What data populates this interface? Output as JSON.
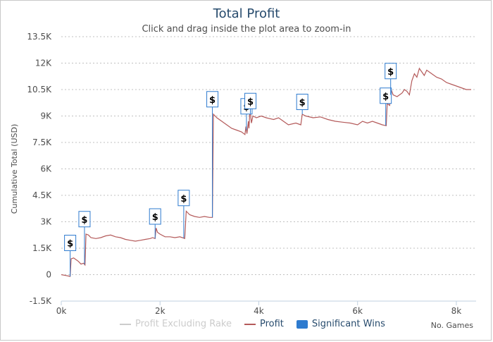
{
  "chart_data": {
    "type": "line",
    "title": "Total Profit",
    "subtitle": "Click and drag inside the plot area to zoom-in",
    "ylabel": "Cumulative Total (USD)",
    "xlabel": "No. Games",
    "ylim": [
      -1500,
      13500
    ],
    "xlim": [
      0,
      8400
    ],
    "y_ticks": [
      -1500,
      0,
      1500,
      3000,
      4500,
      6000,
      7500,
      9000,
      10500,
      12000,
      13500
    ],
    "y_tick_labels": [
      "-1.5K",
      "0",
      "1.5K",
      "3K",
      "4.5K",
      "6K",
      "7.5K",
      "9K",
      "10.5K",
      "12K",
      "13.5K"
    ],
    "x_ticks": [
      0,
      2000,
      4000,
      6000,
      8000
    ],
    "x_tick_labels": [
      "0k",
      "2k",
      "4k",
      "6k",
      "8k"
    ],
    "series": [
      {
        "name": "Profit Excluding Rake",
        "visible": false,
        "color": "#cccccc",
        "points": []
      },
      {
        "name": "Profit",
        "visible": true,
        "color": "#b45a5a",
        "points": [
          [
            0,
            0
          ],
          [
            100,
            -50
          ],
          [
            150,
            -80
          ],
          [
            180,
            -100
          ],
          [
            200,
            900
          ],
          [
            250,
            950
          ],
          [
            300,
            850
          ],
          [
            350,
            750
          ],
          [
            400,
            600
          ],
          [
            450,
            650
          ],
          [
            480,
            550
          ],
          [
            500,
            2300
          ],
          [
            550,
            2250
          ],
          [
            600,
            2100
          ],
          [
            700,
            2050
          ],
          [
            800,
            2100
          ],
          [
            900,
            2200
          ],
          [
            1000,
            2250
          ],
          [
            1100,
            2150
          ],
          [
            1200,
            2100
          ],
          [
            1300,
            2000
          ],
          [
            1400,
            1950
          ],
          [
            1500,
            1900
          ],
          [
            1600,
            1950
          ],
          [
            1700,
            2000
          ],
          [
            1800,
            2050
          ],
          [
            1850,
            2100
          ],
          [
            1900,
            2050
          ],
          [
            1920,
            2650
          ],
          [
            1950,
            2400
          ],
          [
            2000,
            2300
          ],
          [
            2100,
            2150
          ],
          [
            2200,
            2150
          ],
          [
            2300,
            2100
          ],
          [
            2400,
            2150
          ],
          [
            2450,
            2100
          ],
          [
            2500,
            2050
          ],
          [
            2530,
            3600
          ],
          [
            2600,
            3400
          ],
          [
            2700,
            3300
          ],
          [
            2800,
            3250
          ],
          [
            2900,
            3300
          ],
          [
            3000,
            3250
          ],
          [
            3060,
            3250
          ],
          [
            3080,
            9100
          ],
          [
            3150,
            8900
          ],
          [
            3250,
            8700
          ],
          [
            3350,
            8500
          ],
          [
            3450,
            8300
          ],
          [
            3550,
            8200
          ],
          [
            3650,
            8100
          ],
          [
            3720,
            7950
          ],
          [
            3740,
            8400
          ],
          [
            3760,
            8000
          ],
          [
            3790,
            8700
          ],
          [
            3800,
            8300
          ],
          [
            3820,
            9400
          ],
          [
            3850,
            8600
          ],
          [
            3880,
            9000
          ],
          [
            3950,
            8900
          ],
          [
            4050,
            9000
          ],
          [
            4150,
            8900
          ],
          [
            4300,
            8800
          ],
          [
            4400,
            8900
          ],
          [
            4500,
            8700
          ],
          [
            4600,
            8500
          ],
          [
            4750,
            8600
          ],
          [
            4850,
            8500
          ],
          [
            4880,
            9100
          ],
          [
            4950,
            9000
          ],
          [
            5100,
            8900
          ],
          [
            5250,
            8950
          ],
          [
            5400,
            8800
          ],
          [
            5550,
            8700
          ],
          [
            5700,
            8650
          ],
          [
            5850,
            8600
          ],
          [
            6000,
            8500
          ],
          [
            6100,
            8700
          ],
          [
            6200,
            8600
          ],
          [
            6300,
            8700
          ],
          [
            6400,
            8600
          ],
          [
            6500,
            8500
          ],
          [
            6580,
            8450
          ],
          [
            6600,
            9700
          ],
          [
            6650,
            9600
          ],
          [
            6680,
            10500
          ],
          [
            6720,
            10200
          ],
          [
            6800,
            10100
          ],
          [
            6900,
            10300
          ],
          [
            6950,
            10500
          ],
          [
            7000,
            10400
          ],
          [
            7050,
            10200
          ],
          [
            7100,
            11000
          ],
          [
            7150,
            11400
          ],
          [
            7200,
            11200
          ],
          [
            7250,
            11700
          ],
          [
            7300,
            11500
          ],
          [
            7350,
            11300
          ],
          [
            7400,
            11600
          ],
          [
            7500,
            11400
          ],
          [
            7600,
            11200
          ],
          [
            7700,
            11100
          ],
          [
            7800,
            10900
          ],
          [
            7900,
            10800
          ],
          [
            8000,
            10700
          ],
          [
            8100,
            10600
          ],
          [
            8200,
            10500
          ],
          [
            8300,
            10500
          ]
        ]
      },
      {
        "name": "Significant Wins",
        "visible": true,
        "color": "#2e7bcf",
        "flag_label": "$",
        "points": [
          [
            180,
            1800
          ],
          [
            470,
            3150
          ],
          [
            1900,
            3300
          ],
          [
            2480,
            4350
          ],
          [
            3060,
            9950
          ],
          [
            3750,
            9550
          ],
          [
            3830,
            9850
          ],
          [
            4880,
            9800
          ],
          [
            6570,
            10150
          ],
          [
            6670,
            11550
          ]
        ]
      }
    ]
  }
}
